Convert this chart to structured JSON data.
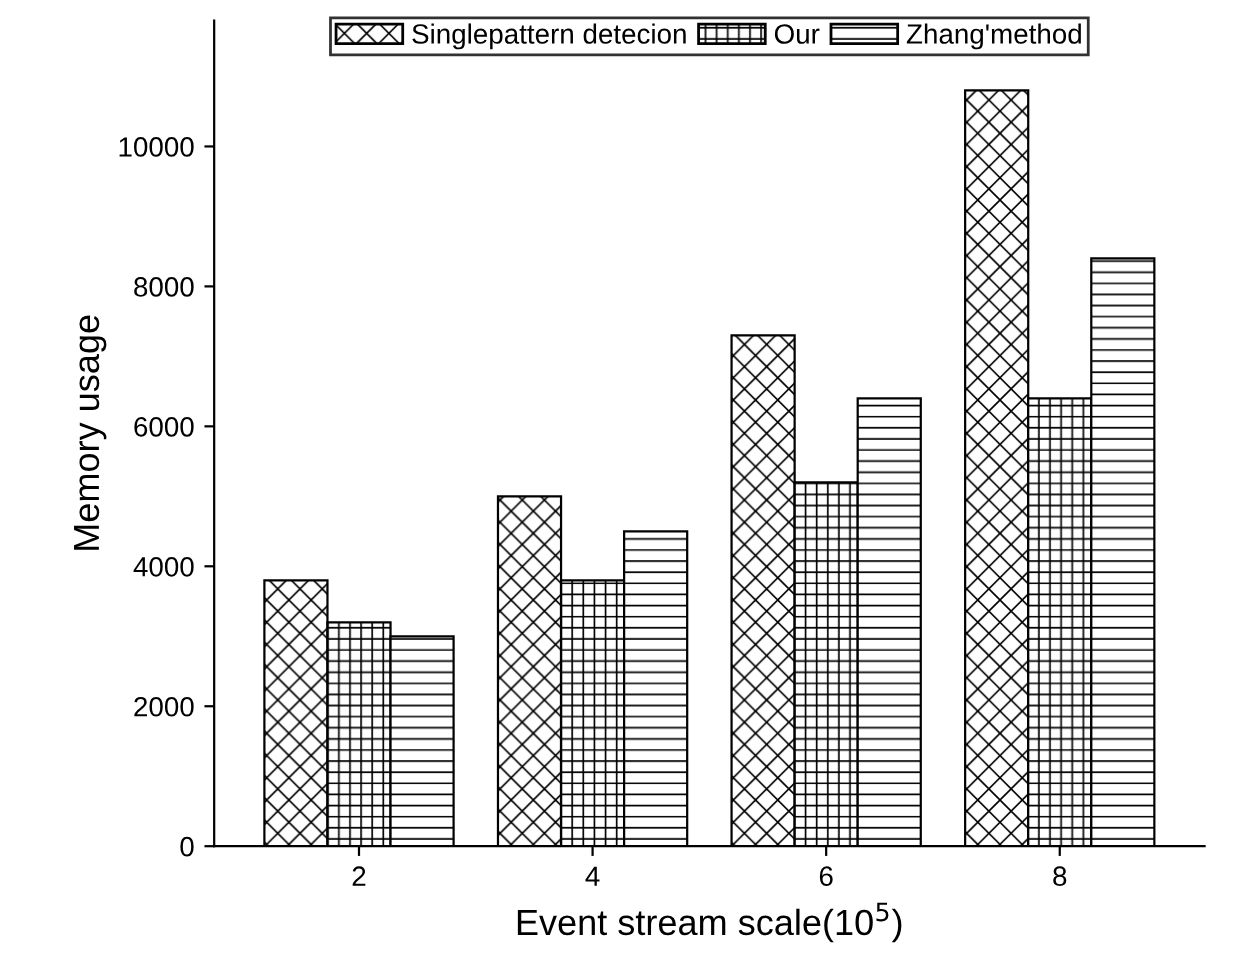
{
  "chart_data": {
    "type": "bar",
    "xlabel": "Event stream scale(10$^{5}$)",
    "ylabel": "Memory usage",
    "categories": [
      "2",
      "4",
      "6",
      "8"
    ],
    "series": [
      {
        "name": "Singlepattern detecion",
        "color": "#000000",
        "values": [
          3800,
          5000,
          7300,
          10800
        ]
      },
      {
        "name": "Our",
        "color": "#000000",
        "values": [
          3200,
          3800,
          5200,
          6400
        ]
      },
      {
        "name": "Zhang'method",
        "color": "#000000",
        "values": [
          3000,
          4500,
          6400,
          8400
        ]
      }
    ],
    "ylim": [
      0,
      11800
    ],
    "yticks": [
      0,
      2000,
      4000,
      6000,
      8000,
      10000
    ],
    "grid": false,
    "legend": "top"
  }
}
